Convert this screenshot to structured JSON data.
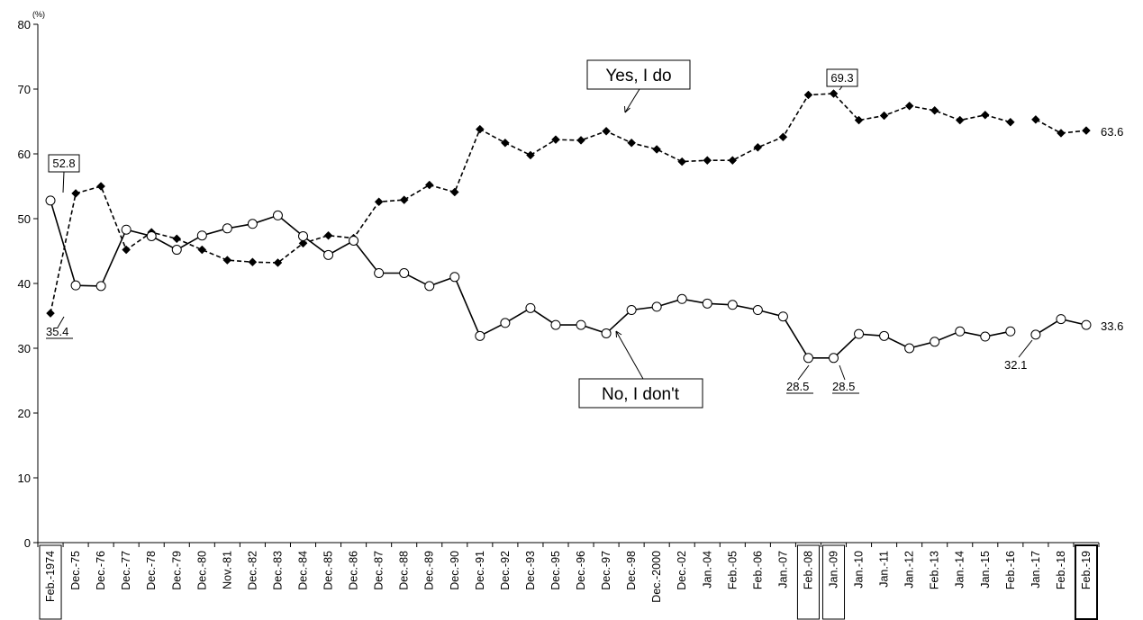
{
  "chart_data": {
    "type": "line",
    "y_unit": "(%)",
    "ylim": [
      0,
      80
    ],
    "yticks": [
      0,
      10,
      20,
      30,
      40,
      50,
      60,
      70,
      80
    ],
    "grid": false,
    "categories": [
      "Feb.-1974",
      "Dec.-75",
      "Dec.-76",
      "Dec.-77",
      "Dec.-78",
      "Dec.-79",
      "Dec.-80",
      "Nov.-81",
      "Dec.-82",
      "Dec.-83",
      "Dec.-84",
      "Dec.-85",
      "Dec.-86",
      "Dec.-87",
      "Dec.-88",
      "Dec.-89",
      "Dec.-90",
      "Dec.-91",
      "Dec.-92",
      "Dec.-93",
      "Dec.-95",
      "Dec.-96",
      "Dec.-97",
      "Dec.-98",
      "Dec.-2000",
      "Dec.-02",
      "Jan.-04",
      "Feb.-05",
      "Feb.-06",
      "Jan.-07",
      "Feb.-08",
      "Jan.-09",
      "Jan.-10",
      "Jan.-11",
      "Jan.-12",
      "Feb.-13",
      "Jan.-14",
      "Jan.-15",
      "Feb.-16",
      "Jan.-17",
      "Feb.-18",
      "Feb.-19"
    ],
    "boxed_categories": [
      "Feb.-1974",
      "Feb.-08",
      "Jan.-09",
      "Feb.-19"
    ],
    "series": [
      {
        "name": "Yes, I do",
        "style": "dashed",
        "marker": "diamond",
        "color": "#000000",
        "values": [
          35.4,
          53.9,
          55.0,
          45.2,
          47.9,
          46.9,
          45.2,
          43.6,
          43.3,
          43.2,
          46.2,
          47.4,
          47.0,
          52.6,
          52.9,
          55.2,
          54.1,
          63.8,
          61.7,
          59.8,
          62.2,
          62.1,
          63.5,
          61.7,
          60.7,
          58.8,
          59.0,
          59.0,
          61.0,
          62.6,
          69.1,
          69.3,
          65.2,
          65.9,
          67.4,
          66.7,
          65.2,
          66.0,
          64.9,
          65.3,
          63.2,
          63.6
        ],
        "segments": [
          [
            0,
            38
          ],
          [
            39,
            41
          ]
        ]
      },
      {
        "name": "No, I don't",
        "style": "solid",
        "marker": "circle",
        "color": "#000000",
        "values": [
          52.8,
          39.7,
          39.6,
          48.3,
          47.3,
          45.2,
          47.4,
          48.5,
          49.2,
          50.5,
          47.3,
          44.4,
          46.6,
          41.6,
          41.6,
          39.6,
          41.0,
          31.9,
          33.9,
          36.2,
          33.6,
          33.6,
          32.3,
          35.9,
          36.4,
          37.6,
          36.9,
          36.7,
          35.9,
          34.9,
          28.5,
          28.5,
          32.2,
          31.9,
          30.0,
          31.0,
          32.6,
          31.8,
          32.6,
          32.1,
          34.5,
          33.6
        ],
        "segments": [
          [
            0,
            38
          ],
          [
            39,
            41
          ]
        ]
      }
    ],
    "annotations": [
      {
        "text": "52.8",
        "boxed": true,
        "underline": false
      },
      {
        "text": "35.4",
        "boxed": false,
        "underline": true
      },
      {
        "text": "69.3",
        "boxed": true,
        "underline": false
      },
      {
        "text": "63.6",
        "boxed": false,
        "underline": false
      },
      {
        "text": "28.5",
        "boxed": false,
        "underline": true
      },
      {
        "text": "28.5",
        "boxed": false,
        "underline": true
      },
      {
        "text": "32.1",
        "boxed": false,
        "underline": false
      },
      {
        "text": "33.6",
        "boxed": false,
        "underline": false
      }
    ],
    "legend_labels": {
      "yes": "Yes, I do",
      "no": "No, I don't"
    }
  }
}
